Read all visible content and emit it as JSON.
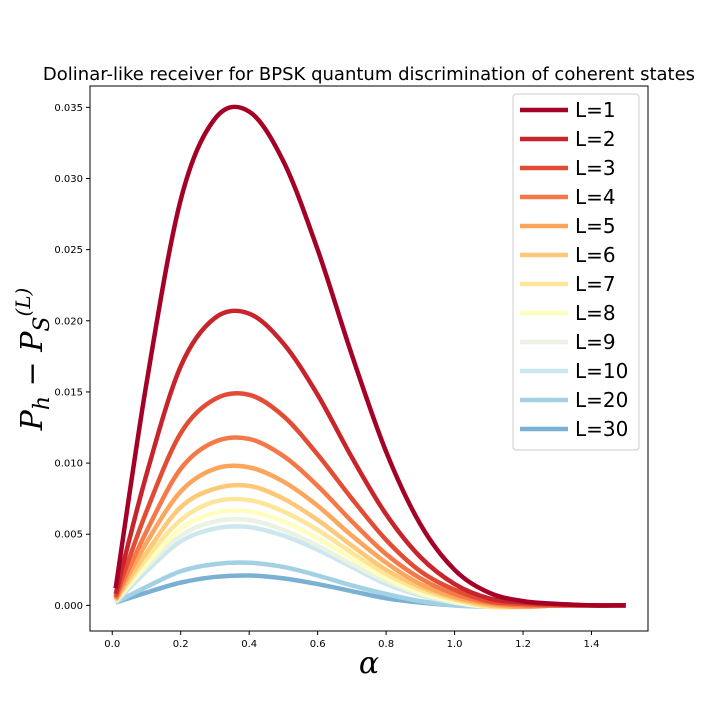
{
  "chart_data": {
    "type": "line",
    "title": "Dolinar-like receiver for BPSK quantum discrimination of coherent states",
    "xlabel": "α",
    "ylabel": "P_h − P_S^(L)",
    "xlim": [
      -0.065,
      1.565
    ],
    "ylim": [
      -0.0018,
      0.0365
    ],
    "xticks": [
      0.0,
      0.2,
      0.4,
      0.6,
      0.8,
      1.0,
      1.2,
      1.4
    ],
    "xtick_labels": [
      "0.0",
      "0.2",
      "0.4",
      "0.6",
      "0.8",
      "1.0",
      "1.2",
      "1.4"
    ],
    "yticks": [
      0.0,
      0.005,
      0.01,
      0.015,
      0.02,
      0.025,
      0.03,
      0.035
    ],
    "ytick_labels": [
      "0.000",
      "0.005",
      "0.010",
      "0.015",
      "0.020",
      "0.025",
      "0.030",
      "0.035"
    ],
    "grid": false,
    "legend_position": "top-right",
    "x": [
      0.01,
      0.1,
      0.2,
      0.3,
      0.4,
      0.5,
      0.6,
      0.7,
      0.8,
      0.9,
      1.0,
      1.1,
      1.2,
      1.3,
      1.4,
      1.5
    ],
    "series": [
      {
        "name": "L=1",
        "color": "#a50026",
        "values": [
          0.0012,
          0.0156,
          0.0285,
          0.0342,
          0.0347,
          0.0312,
          0.025,
          0.0176,
          0.0108,
          0.0057,
          0.0025,
          0.0009,
          0.0003,
          0.0001,
          0.0,
          0.0
        ]
      },
      {
        "name": "L=2",
        "color": "#c8242b",
        "values": [
          0.0008,
          0.0092,
          0.0168,
          0.0202,
          0.0205,
          0.0184,
          0.0148,
          0.0104,
          0.0064,
          0.0034,
          0.0015,
          0.0005,
          0.0002,
          0.0001,
          0.0,
          0.0
        ]
      },
      {
        "name": "L=3",
        "color": "#e34c34",
        "values": [
          0.0006,
          0.0066,
          0.0121,
          0.0145,
          0.0148,
          0.0133,
          0.0106,
          0.0075,
          0.0046,
          0.0024,
          0.0011,
          0.0003,
          0.0001,
          0.0,
          0.0,
          0.0
        ]
      },
      {
        "name": "L=4",
        "color": "#f57948",
        "values": [
          0.0005,
          0.0052,
          0.0096,
          0.0115,
          0.0117,
          0.0105,
          0.0084,
          0.0059,
          0.0036,
          0.0019,
          0.0008,
          0.0002,
          0.0,
          0.0,
          0.0,
          0.0
        ]
      },
      {
        "name": "L=5",
        "color": "#fca55d",
        "values": [
          0.0004,
          0.0044,
          0.008,
          0.0096,
          0.0097,
          0.0087,
          0.007,
          0.0049,
          0.003,
          0.0015,
          0.0006,
          0.0001,
          -0.0001,
          0.0,
          0.0,
          0.0
        ]
      },
      {
        "name": "L=6",
        "color": "#fdc877",
        "values": [
          0.0004,
          0.0037,
          0.0069,
          0.0082,
          0.0084,
          0.0075,
          0.006,
          0.0042,
          0.0025,
          0.0013,
          0.0005,
          0.0,
          -0.0001,
          0.0,
          0.0,
          0.0
        ]
      },
      {
        "name": "L=7",
        "color": "#fee599",
        "values": [
          0.0003,
          0.0033,
          0.006,
          0.0073,
          0.0074,
          0.0066,
          0.0053,
          0.0037,
          0.0022,
          0.0011,
          0.0004,
          -0.0001,
          -0.0001,
          0.0,
          0.0,
          0.0
        ]
      },
      {
        "name": "L=8",
        "color": "#feffbe",
        "values": [
          0.0003,
          0.0029,
          0.0054,
          0.0065,
          0.0066,
          0.0059,
          0.0047,
          0.0033,
          0.0019,
          0.0009,
          0.0003,
          -0.0001,
          -0.0001,
          0.0,
          0.0,
          0.0
        ]
      },
      {
        "name": "L=9",
        "color": "#eaf3e3",
        "values": [
          0.0003,
          0.0027,
          0.0049,
          0.0059,
          0.006,
          0.0053,
          0.0042,
          0.0029,
          0.0017,
          0.0008,
          0.0002,
          -0.0001,
          -0.0001,
          0.0,
          0.0,
          0.0
        ]
      },
      {
        "name": "L=10",
        "color": "#cce7ed",
        "values": [
          0.0002,
          0.0024,
          0.0045,
          0.0054,
          0.0055,
          0.0049,
          0.0039,
          0.0027,
          0.0015,
          0.0007,
          0.0002,
          -0.0001,
          -0.0001,
          0.0,
          0.0,
          0.0
        ]
      },
      {
        "name": "L=20",
        "color": "#a3d1e4",
        "values": [
          0.0002,
          0.0013,
          0.0024,
          0.0029,
          0.003,
          0.0027,
          0.0021,
          0.0014,
          0.0008,
          0.0003,
          0.0,
          -0.0001,
          -0.0001,
          0.0,
          0.0,
          0.0
        ]
      },
      {
        "name": "L=30",
        "color": "#7ab0d4",
        "values": [
          0.0002,
          0.0009,
          0.0016,
          0.002,
          0.0021,
          0.0019,
          0.0015,
          0.001,
          0.0005,
          0.0002,
          0.0,
          -0.0001,
          -0.0001,
          0.0,
          0.0,
          0.0
        ]
      }
    ]
  }
}
